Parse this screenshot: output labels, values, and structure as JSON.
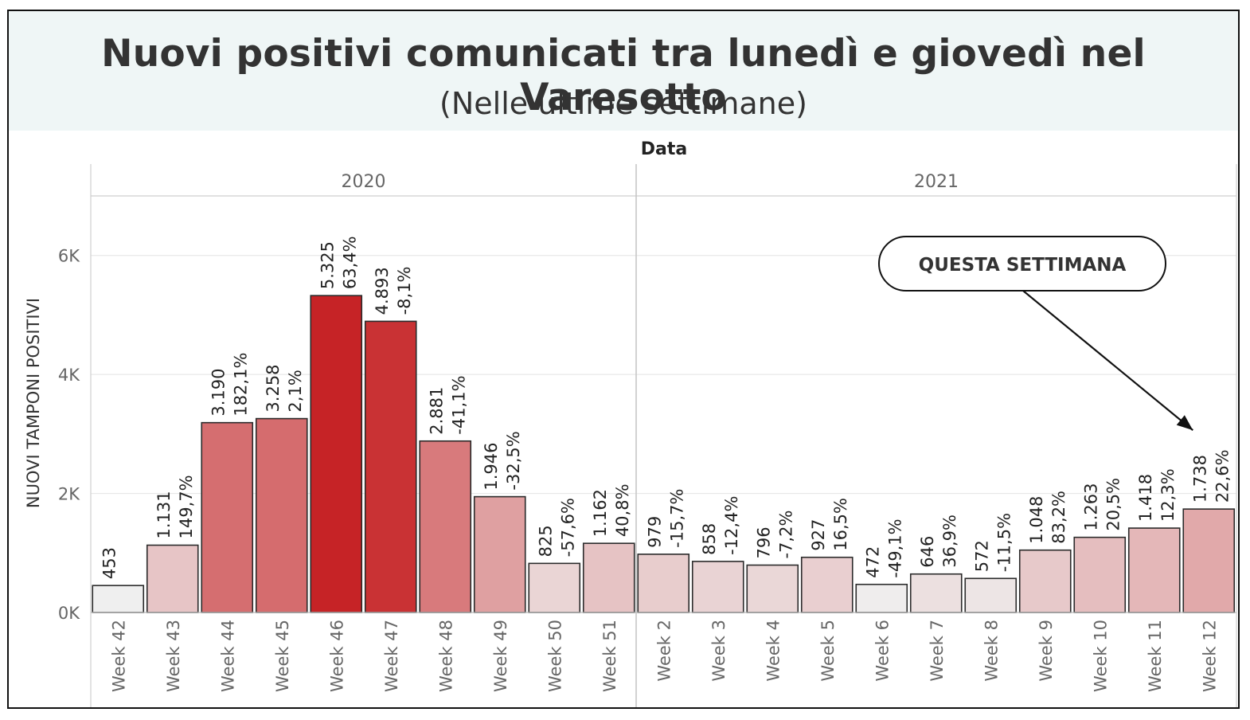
{
  "title": "Nuovi positivi comunicati tra lunedì e giovedì nel Varesotto",
  "subtitle": "(Nelle ultime settimane)",
  "colors": {
    "header_bg": "#eff6f6",
    "bar_low": "#efefef",
    "bar_high": "#c62326",
    "bar_stroke": "#2b2b2b",
    "grid": "#e8e8e8",
    "axis_text": "#666666"
  },
  "chart_data": {
    "type": "bar",
    "column_header": "Data",
    "ylabel": "NUOVI TAMPONI POSITIVI",
    "ylim": [
      0,
      7000
    ],
    "yticks": [
      0,
      2000,
      4000,
      6000
    ],
    "ytick_labels": [
      "0K",
      "2K",
      "4K",
      "6K"
    ],
    "grid": true,
    "panels": [
      {
        "year": "2020",
        "categories": [
          "Week 42",
          "Week 43",
          "Week 44",
          "Week 45",
          "Week 46",
          "Week 47",
          "Week 48",
          "Week 49",
          "Week 50",
          "Week 51"
        ],
        "values": [
          453,
          1131,
          3190,
          3258,
          5325,
          4893,
          2881,
          1946,
          825,
          1162
        ],
        "value_labels": [
          "453",
          "1.131",
          "3.190",
          "3.258",
          "5.325",
          "4.893",
          "2.881",
          "1.946",
          "825",
          "1.162"
        ],
        "pct_labels": [
          "",
          "149,7%",
          "182,1%",
          "2,1%",
          "63,4%",
          "-8,1%",
          "-41,1%",
          "-32,5%",
          "-57,6%",
          "40,8%"
        ]
      },
      {
        "year": "2021",
        "categories": [
          "Week 2",
          "Week 3",
          "Week 4",
          "Week 5",
          "Week 6",
          "Week 7",
          "Week 8",
          "Week 9",
          "Week 10",
          "Week 11",
          "Week 12"
        ],
        "values": [
          979,
          858,
          796,
          927,
          472,
          646,
          572,
          1048,
          1263,
          1418,
          1738
        ],
        "value_labels": [
          "979",
          "858",
          "796",
          "927",
          "472",
          "646",
          "572",
          "1.048",
          "1.263",
          "1.418",
          "1.738"
        ],
        "pct_labels": [
          "-15,7%",
          "-12,4%",
          "-7,2%",
          "16,5%",
          "-49,1%",
          "36,9%",
          "-11,5%",
          "83,2%",
          "20,5%",
          "12,3%",
          "22,6%"
        ]
      }
    ],
    "annotation": {
      "text": "QUESTA SETTIMANA",
      "target": "Week 12"
    }
  }
}
